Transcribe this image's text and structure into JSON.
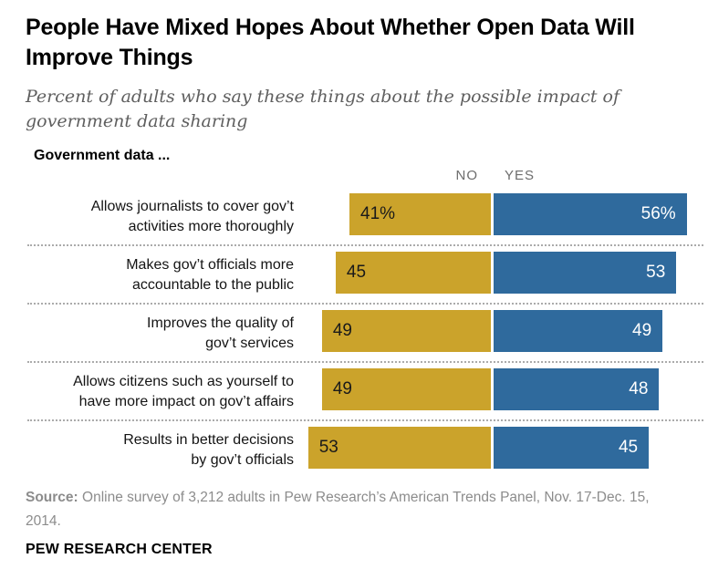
{
  "title": "People Have Mixed Hopes About Whether Open Data Will Improve Things",
  "subtitle": "Percent of adults who say these things about the possible impact of government data sharing",
  "section_heading": "Government data ...",
  "chart_data": {
    "type": "bar",
    "orientation": "diverging-horizontal",
    "grid": false,
    "legend": {
      "no": "NO",
      "yes": "YES"
    },
    "colors": {
      "no": "#CBA32B",
      "yes": "#2F6A9D"
    },
    "categories": [
      "Allows journalists to cover gov’t activities more thoroughly",
      "Makes gov’t officials more accountable to the public",
      "Improves the quality of gov’t services",
      "Allows citizens such as yourself to have more impact on gov’t affairs",
      "Results in better decisions by gov’t officials"
    ],
    "series": [
      {
        "name": "NO",
        "values": [
          41,
          45,
          49,
          49,
          53
        ]
      },
      {
        "name": "YES",
        "values": [
          56,
          53,
          49,
          48,
          45
        ]
      }
    ],
    "rows": [
      {
        "label_lines": [
          "Allows journalists to cover gov’t",
          "activities more thoroughly"
        ],
        "no": 41,
        "yes": 56,
        "no_label": "41%",
        "yes_label": "56%"
      },
      {
        "label_lines": [
          "Makes gov’t officials more",
          "accountable to the public"
        ],
        "no": 45,
        "yes": 53,
        "no_label": "45",
        "yes_label": "53"
      },
      {
        "label_lines": [
          "Improves the quality of",
          "gov’t services"
        ],
        "no": 49,
        "yes": 49,
        "no_label": "49",
        "yes_label": "49"
      },
      {
        "label_lines": [
          "Allows citizens such as yourself to",
          "have more impact on gov’t affairs"
        ],
        "no": 49,
        "yes": 48,
        "no_label": "49",
        "yes_label": "48"
      },
      {
        "label_lines": [
          "Results in better decisions",
          "by gov’t officials"
        ],
        "no": 53,
        "yes": 45,
        "no_label": "53",
        "yes_label": "45"
      }
    ]
  },
  "footer": {
    "source_label": "Source:",
    "source_text": "Online survey of 3,212 adults in Pew Research’s American Trends Panel, Nov. 17-Dec. 15, 2014.",
    "branding": "PEW RESEARCH CENTER"
  }
}
